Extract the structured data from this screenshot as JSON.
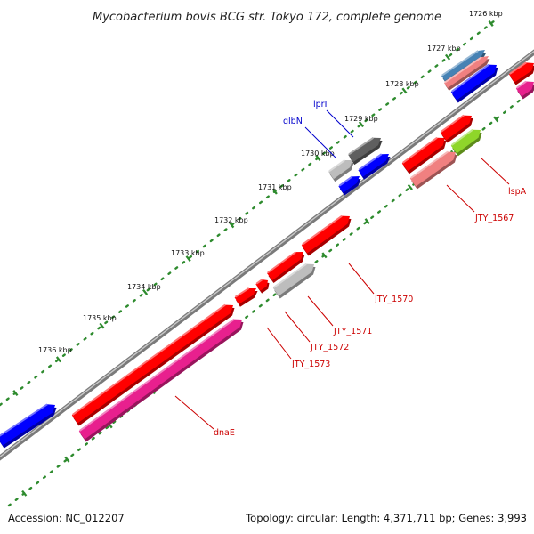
{
  "title": "Mycobacterium bovis BCG str. Tokyo 172, complete genome",
  "footer": {
    "accession": "Accession: NC_012207",
    "summary": "Topology: circular; Length: 4,371,711 bp; Genes: 3,993"
  },
  "colors": {
    "backbone": "#9a9a9a",
    "tick_dots": "#2e8b2e",
    "label_blue": "#0000cc",
    "label_red": "#cc0000",
    "gene_red": "#ff0000",
    "gene_pink": "#f08080",
    "gene_magenta": "#e8208e",
    "gene_blue": "#0000ff",
    "gene_gray": "#bdbdbd",
    "gene_darkgray": "#5f5f5f",
    "gene_green": "#8fd62a",
    "gene_steelblue": "#4682b4"
  },
  "kbp_ticks": [
    {
      "label": "1726 kbp"
    },
    {
      "label": "1727 kbp"
    },
    {
      "label": "1728 kbp"
    },
    {
      "label": "1729 kbp"
    },
    {
      "label": "1730 kbp"
    },
    {
      "label": "1731 kbp"
    },
    {
      "label": "1732 kbp"
    },
    {
      "label": "1733 kbp"
    },
    {
      "label": "1734 kbp"
    },
    {
      "label": "1735 kbp"
    },
    {
      "label": "1736 kbp"
    }
  ],
  "gene_labels": [
    {
      "name": "lprI",
      "color": "blue"
    },
    {
      "name": "glbN",
      "color": "blue"
    },
    {
      "name": "lspA",
      "color": "red"
    },
    {
      "name": "JTY_1567",
      "color": "red"
    },
    {
      "name": "JTY_1570",
      "color": "red"
    },
    {
      "name": "JTY_1571",
      "color": "red"
    },
    {
      "name": "JTY_1572",
      "color": "red"
    },
    {
      "name": "JTY_1573",
      "color": "red"
    },
    {
      "name": "dnaE",
      "color": "red"
    }
  ]
}
